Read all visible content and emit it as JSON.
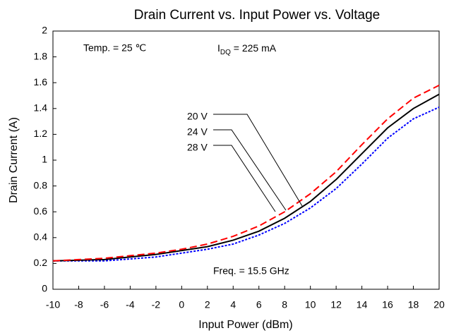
{
  "chart_data": {
    "type": "line",
    "title": "Drain Current vs. Input Power vs. Voltage",
    "xlabel": "Input Power (dBm)",
    "ylabel": "Drain Current (A)",
    "annotations": {
      "temp": "Temp. = 25 ℃",
      "idq_base": "I",
      "idq_sub": "DQ",
      "idq_rest": " = 225 mA",
      "freq": "Freq. = 15.5 GHz"
    },
    "x": [
      -10,
      -8,
      -6,
      -4,
      -2,
      0,
      2,
      4,
      6,
      8,
      10,
      12,
      14,
      16,
      18,
      20
    ],
    "series": [
      {
        "name": "20 V",
        "color": "#0000ff",
        "dash": "dotted",
        "values": [
          0.22,
          0.22,
          0.22,
          0.235,
          0.25,
          0.28,
          0.31,
          0.35,
          0.42,
          0.51,
          0.63,
          0.78,
          0.97,
          1.17,
          1.32,
          1.41
        ]
      },
      {
        "name": "24 V",
        "color": "#000000",
        "dash": "solid",
        "values": [
          0.22,
          0.225,
          0.23,
          0.25,
          0.27,
          0.3,
          0.33,
          0.38,
          0.45,
          0.55,
          0.68,
          0.85,
          1.05,
          1.25,
          1.4,
          1.51
        ]
      },
      {
        "name": "28 V",
        "color": "#ff0000",
        "dash": "dashed",
        "values": [
          0.22,
          0.23,
          0.24,
          0.26,
          0.28,
          0.31,
          0.35,
          0.41,
          0.49,
          0.6,
          0.74,
          0.91,
          1.12,
          1.32,
          1.48,
          1.58
        ]
      }
    ],
    "xlim": [
      -10,
      20
    ],
    "xticks": [
      -10,
      -8,
      -6,
      -4,
      -2,
      0,
      2,
      4,
      6,
      8,
      10,
      12,
      14,
      16,
      18,
      20
    ],
    "ylim": [
      0,
      2
    ],
    "yticks": [
      0,
      0.2,
      0.4,
      0.6,
      0.8,
      1,
      1.2,
      1.4,
      1.6,
      1.8,
      2
    ],
    "grid": false
  }
}
